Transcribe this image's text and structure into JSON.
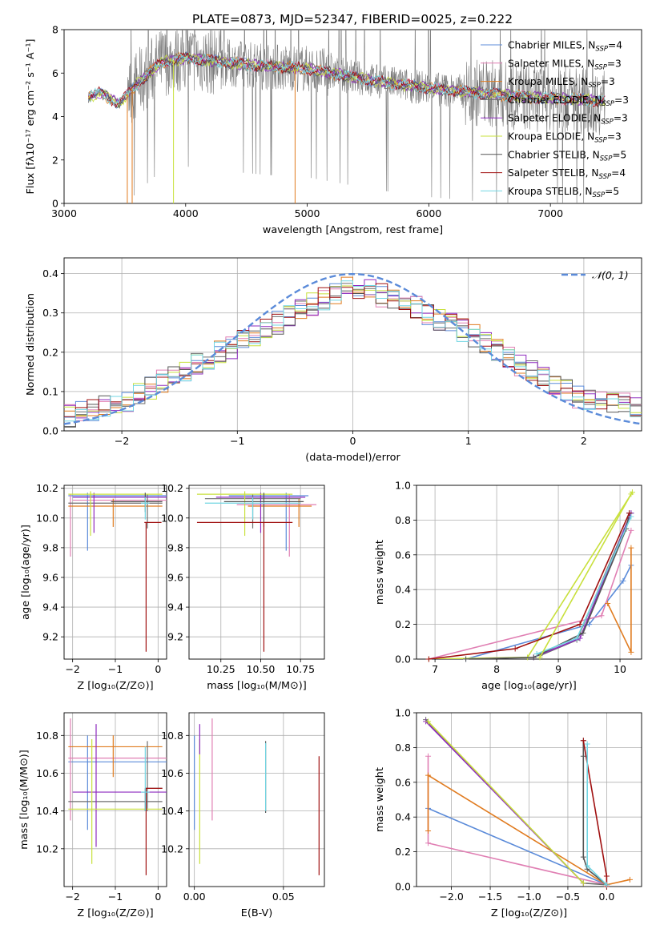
{
  "figure_title": "PLATE=0873, MJD=52347, FIBERID=0025, z=0.222",
  "colors": {
    "Chabrier MILES": "#5b8bd9",
    "Salpeter MILES": "#e07fb3",
    "Kroupa MILES": "#e07b1f",
    "Chabrier ELODIE": "#6e6e6e",
    "Salpeter ELODIE": "#8e2bbf",
    "Kroupa ELODIE": "#c8e03c",
    "Chabrier STELIB": "#555555",
    "Salpeter STELIB": "#a01010",
    "Kroupa STELIB": "#72d6e3",
    "normal": "#5b8bd9",
    "data": "#7a7a7a"
  },
  "chart_data": [
    {
      "id": "spectrum",
      "type": "line",
      "title": "PLATE=0873, MJD=52347, FIBERID=0025, z=0.222",
      "xlabel": "wavelength [Angstrom, rest frame]",
      "ylabel": "Flux [fλ10⁻¹⁷ erg cm⁻² s⁻¹ A⁻¹]",
      "xlim": [
        3000,
        7750
      ],
      "ylim": [
        0,
        8
      ],
      "xticks": [
        "3000",
        "4000",
        "5000",
        "6000",
        "7000"
      ],
      "yticks": [
        "0",
        "2",
        "4",
        "6",
        "8"
      ],
      "continuum": {
        "x": [
          3200,
          3300,
          3450,
          3600,
          3800,
          4000,
          4300,
          4700,
          5000,
          5300,
          5600,
          6000,
          6400,
          6800,
          7200,
          7450
        ],
        "y": [
          4.9,
          5.1,
          4.6,
          5.5,
          6.5,
          6.7,
          6.5,
          6.3,
          6.2,
          5.9,
          5.6,
          5.3,
          5.1,
          4.9,
          4.8,
          4.7
        ]
      },
      "legend": [
        {
          "label": "Chabrier MILES, N",
          "sub": "SSP",
          "tail": "=4"
        },
        {
          "label": "Salpeter MILES, N",
          "sub": "SSP",
          "tail": "=3"
        },
        {
          "label": "Kroupa MILES, N",
          "sub": "SSP",
          "tail": "=3"
        },
        {
          "label": "Chabrier ELODIE, N",
          "sub": "SSP",
          "tail": "=3"
        },
        {
          "label": "Salpeter ELODIE, N",
          "sub": "SSP",
          "tail": "=3"
        },
        {
          "label": "Kroupa ELODIE, N",
          "sub": "SSP",
          "tail": "=3"
        },
        {
          "label": "Chabrier STELIB, N",
          "sub": "SSP",
          "tail": "=5"
        },
        {
          "label": "Salpeter STELIB, N",
          "sub": "SSP",
          "tail": "=4"
        },
        {
          "label": "Kroupa STELIB, N",
          "sub": "SSP",
          "tail": "=5"
        }
      ]
    },
    {
      "id": "residuals",
      "type": "line",
      "xlabel": "(data-model)/error",
      "ylabel": "Normed distribution",
      "xlim": [
        -2.5,
        2.5
      ],
      "ylim": [
        0,
        0.44
      ],
      "xticks": [
        "−2",
        "−1",
        "0",
        "1",
        "2"
      ],
      "yticks": [
        "0.0",
        "0.1",
        "0.2",
        "0.3",
        "0.4"
      ],
      "legend": "𝒩(0, 1)",
      "hist_envelope": {
        "x": [
          -2.5,
          -2.0,
          -1.5,
          -1.0,
          -0.5,
          0.0,
          0.5,
          1.0,
          1.5,
          2.0,
          2.5
        ],
        "y": [
          0.035,
          0.07,
          0.15,
          0.22,
          0.3,
          0.37,
          0.32,
          0.25,
          0.16,
          0.08,
          0.06
        ]
      }
    },
    {
      "id": "age-vs-Z",
      "type": "scatter",
      "xlabel": "Z [log₁₀(Z/Z⊙)]",
      "ylabel": "age  [log₁₀(age/yr)]",
      "xlim": [
        -2.2,
        0.2
      ],
      "ylim": [
        9.05,
        10.22
      ],
      "xticks": [
        "−2",
        "−1",
        "0"
      ],
      "yticks": [
        "9.2",
        "9.4",
        "9.6",
        "9.8",
        "10.0",
        "10.2"
      ],
      "points": [
        {
          "s": "Chabrier MILES",
          "x": -0.9,
          "y": 10.15,
          "xerr": 1.2,
          "ylo": 9.78,
          "yhi": 10.17,
          "vx": -1.65
        },
        {
          "s": "Salpeter MILES",
          "x": -0.7,
          "y": 10.12,
          "xerr": 1.3,
          "ylo": 9.74,
          "yhi": 10.16,
          "vx": -2.05
        },
        {
          "s": "Kroupa MILES",
          "x": -1.0,
          "y": 10.08,
          "xerr": 1.1,
          "ylo": 9.94,
          "yhi": 10.13,
          "vx": -1.05
        },
        {
          "s": "Chabrier ELODIE",
          "x": -1.0,
          "y": 10.1,
          "xerr": 1.1,
          "ylo": 9.93,
          "yhi": 10.16,
          "vx": -0.25
        },
        {
          "s": "Salpeter ELODIE",
          "x": -0.9,
          "y": 10.14,
          "xerr": 1.1,
          "ylo": 9.9,
          "yhi": 10.17,
          "vx": -1.5
        },
        {
          "s": "Kroupa ELODIE",
          "x": -1.0,
          "y": 10.16,
          "xerr": 1.1,
          "ylo": 9.88,
          "yhi": 10.18,
          "vx": -1.58
        },
        {
          "s": "Chabrier STELIB",
          "x": -0.5,
          "y": 10.11,
          "xerr": 0.6,
          "ylo": 10.04,
          "yhi": 10.17,
          "vx": -0.3
        },
        {
          "s": "Salpeter STELIB",
          "x": -0.12,
          "y": 9.97,
          "xerr": 0.2,
          "ylo": 9.1,
          "yhi": 9.97,
          "vx": -0.28
        },
        {
          "s": "Kroupa STELIB",
          "x": -0.3,
          "y": 10.1,
          "xerr": 0.1,
          "ylo": 9.99,
          "yhi": 10.14,
          "vx": -0.3
        }
      ]
    },
    {
      "id": "age-vs-mass",
      "type": "scatter",
      "xlabel": "mass [log₁₀(M/M⊙)]",
      "ylabel": "",
      "xlim": [
        10.05,
        10.9
      ],
      "ylim": [
        9.05,
        10.22
      ],
      "xticks": [
        "10.25",
        "10.50",
        "10.75"
      ],
      "yticks": [
        "9.2",
        "9.4",
        "9.6",
        "9.8",
        "10.0",
        "10.2"
      ],
      "points": [
        {
          "s": "Chabrier MILES",
          "x": 10.55,
          "y": 10.15,
          "xerr": 0.25,
          "ylo": 9.78,
          "yhi": 10.17,
          "vx": 10.66
        },
        {
          "s": "Salpeter MILES",
          "x": 10.6,
          "y": 10.09,
          "xerr": 0.25,
          "ylo": 9.74,
          "yhi": 10.16,
          "vx": 10.68
        },
        {
          "s": "Kroupa MILES",
          "x": 10.62,
          "y": 10.08,
          "xerr": 0.2,
          "ylo": 9.94,
          "yhi": 10.13,
          "vx": 10.74
        },
        {
          "s": "Chabrier ELODIE",
          "x": 10.45,
          "y": 10.13,
          "xerr": 0.3,
          "ylo": 9.93,
          "yhi": 10.16,
          "vx": 10.45
        },
        {
          "s": "Salpeter ELODIE",
          "x": 10.5,
          "y": 10.14,
          "xerr": 0.28,
          "ylo": 9.9,
          "yhi": 10.17,
          "vx": 10.5
        },
        {
          "s": "Kroupa ELODIE",
          "x": 10.4,
          "y": 10.16,
          "xerr": 0.3,
          "ylo": 9.88,
          "yhi": 10.18,
          "vx": 10.4
        },
        {
          "s": "Chabrier STELIB",
          "x": 10.52,
          "y": 10.11,
          "xerr": 0.25,
          "ylo": 9.94,
          "yhi": 10.17,
          "vx": 10.52
        },
        {
          "s": "Salpeter STELIB",
          "x": 10.4,
          "y": 9.97,
          "xerr": 0.3,
          "ylo": 9.1,
          "yhi": 9.97,
          "vx": 10.52
        },
        {
          "s": "Kroupa STELIB",
          "x": 10.45,
          "y": 10.1,
          "xerr": 0.3,
          "ylo": 9.99,
          "yhi": 10.14,
          "vx": 10.45
        }
      ]
    },
    {
      "id": "weight-vs-age",
      "type": "line",
      "xlabel": "age  [log₁₀(age/yr)]",
      "ylabel": "mass weight",
      "xlim": [
        6.7,
        10.35
      ],
      "ylim": [
        0,
        1
      ],
      "xticks": [
        "7",
        "8",
        "9",
        "10"
      ],
      "yticks": [
        "0.0",
        "0.2",
        "0.4",
        "0.6",
        "0.8",
        "1.0"
      ],
      "series": [
        {
          "s": "Chabrier MILES",
          "x": [
            7.5,
            9.5,
            10.05,
            10.18
          ],
          "y": [
            0.0,
            0.2,
            0.45,
            0.54
          ]
        },
        {
          "s": "Salpeter MILES",
          "x": [
            6.9,
            9.7,
            10.18
          ],
          "y": [
            0.0,
            0.25,
            0.74
          ]
        },
        {
          "s": "Kroupa MILES",
          "x": [
            9.8,
            10.18,
            10.18
          ],
          "y": [
            0.32,
            0.04,
            0.64
          ]
        },
        {
          "s": "Chabrier ELODIE",
          "x": [
            8.7,
            9.3,
            10.18
          ],
          "y": [
            0.02,
            0.11,
            0.84
          ]
        },
        {
          "s": "Salpeter ELODIE",
          "x": [
            8.6,
            9.35,
            10.18
          ],
          "y": [
            0.01,
            0.12,
            0.84
          ]
        },
        {
          "s": "Kroupa ELODIE",
          "x": [
            6.9,
            8.5,
            10.2
          ],
          "y": [
            0.0,
            0.01,
            0.96
          ]
        },
        {
          "s": "Chabrier STELIB",
          "x": [
            7.5,
            8.6,
            9.4,
            10.1,
            10.15
          ],
          "y": [
            0.0,
            0.01,
            0.15,
            0.75,
            0.84
          ]
        },
        {
          "s": "Salpeter STELIB",
          "x": [
            6.9,
            8.3,
            9.35,
            10.15
          ],
          "y": [
            0.0,
            0.06,
            0.2,
            0.84
          ]
        },
        {
          "s": "Kroupa STELIB",
          "x": [
            8.65,
            9.3,
            10.18
          ],
          "y": [
            0.03,
            0.12,
            0.82
          ]
        },
        {
          "s": "Kroupa ELODIE",
          "x": [
            8.7,
            10.18
          ],
          "y": [
            0.01,
            0.95
          ]
        }
      ]
    },
    {
      "id": "mass-vs-Z",
      "type": "scatter",
      "xlabel": "Z [log₁₀(Z/Z⊙)]",
      "ylabel": "mass [log₁₀(M/M⊙)]",
      "xlim": [
        -2.2,
        0.2
      ],
      "ylim": [
        10.0,
        10.92
      ],
      "xticks": [
        "−2",
        "−1",
        "0"
      ],
      "yticks": [
        "10.2",
        "10.4",
        "10.6",
        "10.8"
      ],
      "points": [
        {
          "s": "Chabrier MILES",
          "x": -0.9,
          "y": 10.66,
          "xerr": 1.2,
          "ylo": 10.3,
          "yhi": 10.8,
          "vx": -1.65
        },
        {
          "s": "Salpeter MILES",
          "x": -0.9,
          "y": 10.68,
          "xerr": 1.2,
          "ylo": 10.35,
          "yhi": 10.89,
          "vx": -2.05
        },
        {
          "s": "Kroupa MILES",
          "x": -1.0,
          "y": 10.74,
          "xerr": 1.1,
          "ylo": 10.58,
          "yhi": 10.8,
          "vx": -1.05
        },
        {
          "s": "Chabrier ELODIE",
          "x": -1.0,
          "y": 10.45,
          "xerr": 1.1,
          "ylo": 10.4,
          "yhi": 10.77,
          "vx": -0.25
        },
        {
          "s": "Salpeter ELODIE",
          "x": -0.9,
          "y": 10.5,
          "xerr": 1.1,
          "ylo": 10.21,
          "yhi": 10.86,
          "vx": -1.45
        },
        {
          "s": "Kroupa ELODIE",
          "x": -1.0,
          "y": 10.41,
          "xerr": 1.1,
          "ylo": 10.12,
          "yhi": 10.78,
          "vx": -1.55
        },
        {
          "s": "Chabrier STELIB",
          "x": -0.1,
          "y": 10.52,
          "xerr": 0.2,
          "ylo": 10.4,
          "yhi": 10.52,
          "vx": -0.3
        },
        {
          "s": "Salpeter STELIB",
          "x": -0.1,
          "y": 10.52,
          "xerr": 0.2,
          "ylo": 10.06,
          "yhi": 10.52,
          "vx": -0.28
        },
        {
          "s": "Kroupa STELIB",
          "x": -0.3,
          "y": 10.5,
          "xerr": 0.1,
          "ylo": 10.4,
          "yhi": 10.74,
          "vx": -0.3
        }
      ]
    },
    {
      "id": "mass-vs-ebv",
      "type": "scatter",
      "xlabel": "E(B-V)",
      "ylabel": "",
      "xlim": [
        -0.003,
        0.073
      ],
      "ylim": [
        10.0,
        10.92
      ],
      "xticks": [
        "0.00",
        "0.05"
      ],
      "yticks": [
        "10.2",
        "10.4",
        "10.6",
        "10.8"
      ],
      "points": [
        {
          "s": "Chabrier MILES",
          "x": 0.0,
          "ylo": 10.3,
          "yhi": 10.8
        },
        {
          "s": "Salpeter MILES",
          "x": 0.01,
          "ylo": 10.35,
          "yhi": 10.89
        },
        {
          "s": "Kroupa ELODIE",
          "x": 0.003,
          "ylo": 10.12,
          "yhi": 10.78
        },
        {
          "s": "Salpeter ELODIE",
          "x": 0.003,
          "ylo": 10.7,
          "yhi": 10.86
        },
        {
          "s": "Chabrier STELIB",
          "x": 0.04,
          "ylo": 10.39,
          "yhi": 10.77
        },
        {
          "s": "Kroupa STELIB",
          "x": 0.04,
          "ylo": 10.4,
          "yhi": 10.76
        },
        {
          "s": "Salpeter STELIB",
          "x": 0.07,
          "ylo": 10.06,
          "yhi": 10.69
        }
      ]
    },
    {
      "id": "weight-vs-Z",
      "type": "line",
      "xlabel": "Z [log₁₀(Z/Z⊙)]",
      "ylabel": "mass weight",
      "xlim": [
        -2.45,
        0.45
      ],
      "ylim": [
        0,
        1
      ],
      "xticks": [
        "−2.0",
        "−1.5",
        "−1.0",
        "−0.5",
        "0.0"
      ],
      "yticks": [
        "0.0",
        "0.2",
        "0.4",
        "0.6",
        "0.8",
        "1.0"
      ],
      "series": [
        {
          "s": "Chabrier MILES",
          "x": [
            -2.3,
            0.0
          ],
          "y": [
            0.45,
            0.01
          ]
        },
        {
          "s": "Salpeter MILES",
          "x": [
            -2.3,
            -2.3,
            0.0
          ],
          "y": [
            0.75,
            0.25,
            0.01
          ]
        },
        {
          "s": "Kroupa MILES",
          "x": [
            -2.3,
            -2.3,
            0.0,
            0.3
          ],
          "y": [
            0.32,
            0.64,
            0.01,
            0.04
          ]
        },
        {
          "s": "Chabrier ELODIE",
          "x": [
            -2.33,
            -0.3,
            0.0
          ],
          "y": [
            0.96,
            0.02,
            0.01
          ]
        },
        {
          "s": "Salpeter ELODIE",
          "x": [
            -2.33,
            -0.3
          ],
          "y": [
            0.95,
            0.02
          ]
        },
        {
          "s": "Kroupa ELODIE",
          "x": [
            -2.3,
            -0.3
          ],
          "y": [
            0.95,
            0.02
          ]
        },
        {
          "s": "Chabrier STELIB",
          "x": [
            -0.3,
            -0.3,
            -0.3,
            -0.25,
            0.0
          ],
          "y": [
            0.84,
            0.75,
            0.17,
            0.1,
            0.01
          ]
        },
        {
          "s": "Salpeter STELIB",
          "x": [
            -0.3,
            0.0,
            0.0
          ],
          "y": [
            0.84,
            0.06,
            0.0
          ]
        },
        {
          "s": "Kroupa STELIB",
          "x": [
            -0.25,
            -0.25,
            0.0
          ],
          "y": [
            0.82,
            0.12,
            0.01
          ]
        }
      ]
    }
  ]
}
